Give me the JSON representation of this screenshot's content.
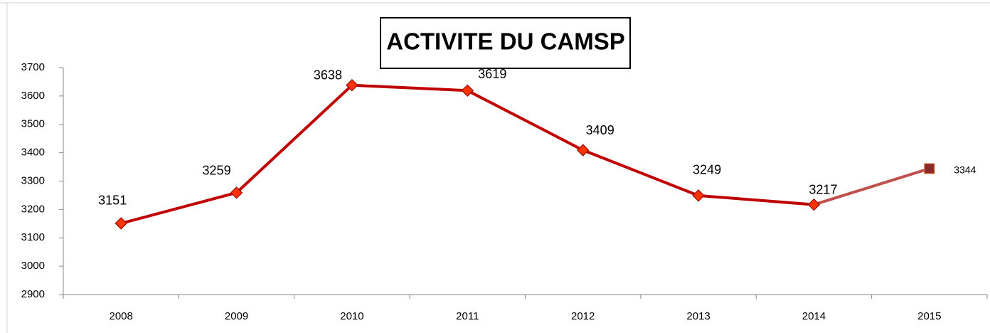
{
  "chart_data": {
    "type": "line",
    "title": "ACTIVITE DU CAMSP",
    "categories": [
      "2008",
      "2009",
      "2010",
      "2011",
      "2012",
      "2013",
      "2014",
      "2015"
    ],
    "series": [
      {
        "name": "ACTIVITE DU CAMSP",
        "color": "#c00000",
        "marker_color": "#ff3300",
        "values": [
          3151,
          3259,
          3638,
          3619,
          3409,
          3249,
          3217,
          3344
        ],
        "highlight": {
          "index": 7,
          "color": "#c0504d",
          "marker_color": "#8b2a2a"
        }
      }
    ],
    "ylim": [
      2900,
      3700
    ],
    "yticks": [
      2900,
      3000,
      3100,
      3200,
      3300,
      3400,
      3500,
      3600,
      3700
    ],
    "grid": false
  }
}
